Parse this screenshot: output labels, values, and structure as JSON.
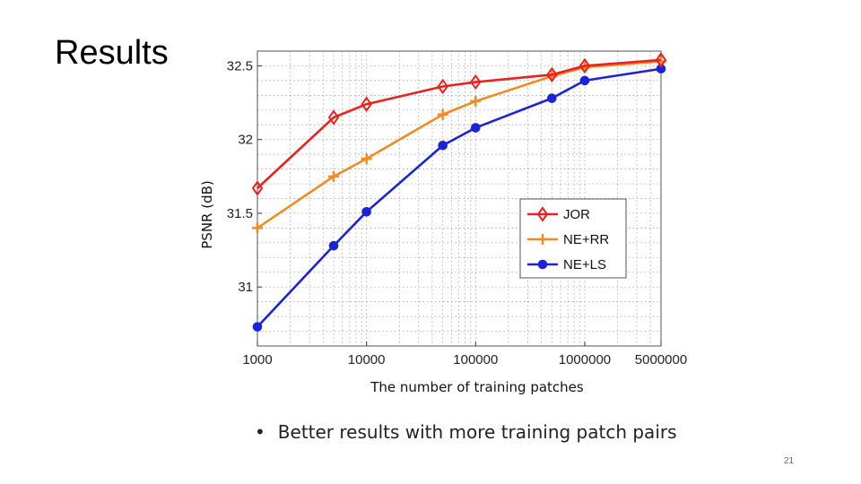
{
  "slide": {
    "title": "Results",
    "bullet": "Better results with more training patch pairs",
    "bullet_symbol": "•",
    "page_number": "21"
  },
  "chart_data": {
    "type": "line",
    "xscale": "log",
    "x": [
      1000,
      5000,
      10000,
      50000,
      100000,
      500000,
      1000000,
      5000000
    ],
    "xticks": [
      1000,
      10000,
      100000,
      1000000,
      5000000
    ],
    "xtick_labels": [
      "1000",
      "10000",
      "100000",
      "1000000",
      "5000000"
    ],
    "xlim": [
      1000,
      5000000
    ],
    "ylim": [
      30.6,
      32.6
    ],
    "yticks": [
      31,
      31.5,
      32,
      32.5
    ],
    "ytick_labels": [
      "31",
      "31.5",
      "32",
      "32.5"
    ],
    "xlabel": "The number of training patches",
    "ylabel": "PSNR (dB)",
    "grid": true,
    "legend_position": "lower-right",
    "series": [
      {
        "name": "JOR",
        "color": "#e8231f",
        "marker": "diamond",
        "values": [
          31.67,
          32.15,
          32.24,
          32.36,
          32.39,
          32.44,
          32.5,
          32.54
        ]
      },
      {
        "name": "NE+RR",
        "color": "#f08a24",
        "marker": "plus",
        "values": [
          31.4,
          31.75,
          31.87,
          32.17,
          32.26,
          32.43,
          32.49,
          32.53
        ]
      },
      {
        "name": "NE+LS",
        "color": "#1c23d6",
        "marker": "circle",
        "values": [
          30.73,
          31.28,
          31.51,
          31.96,
          32.08,
          32.28,
          32.4,
          32.48
        ]
      }
    ]
  }
}
